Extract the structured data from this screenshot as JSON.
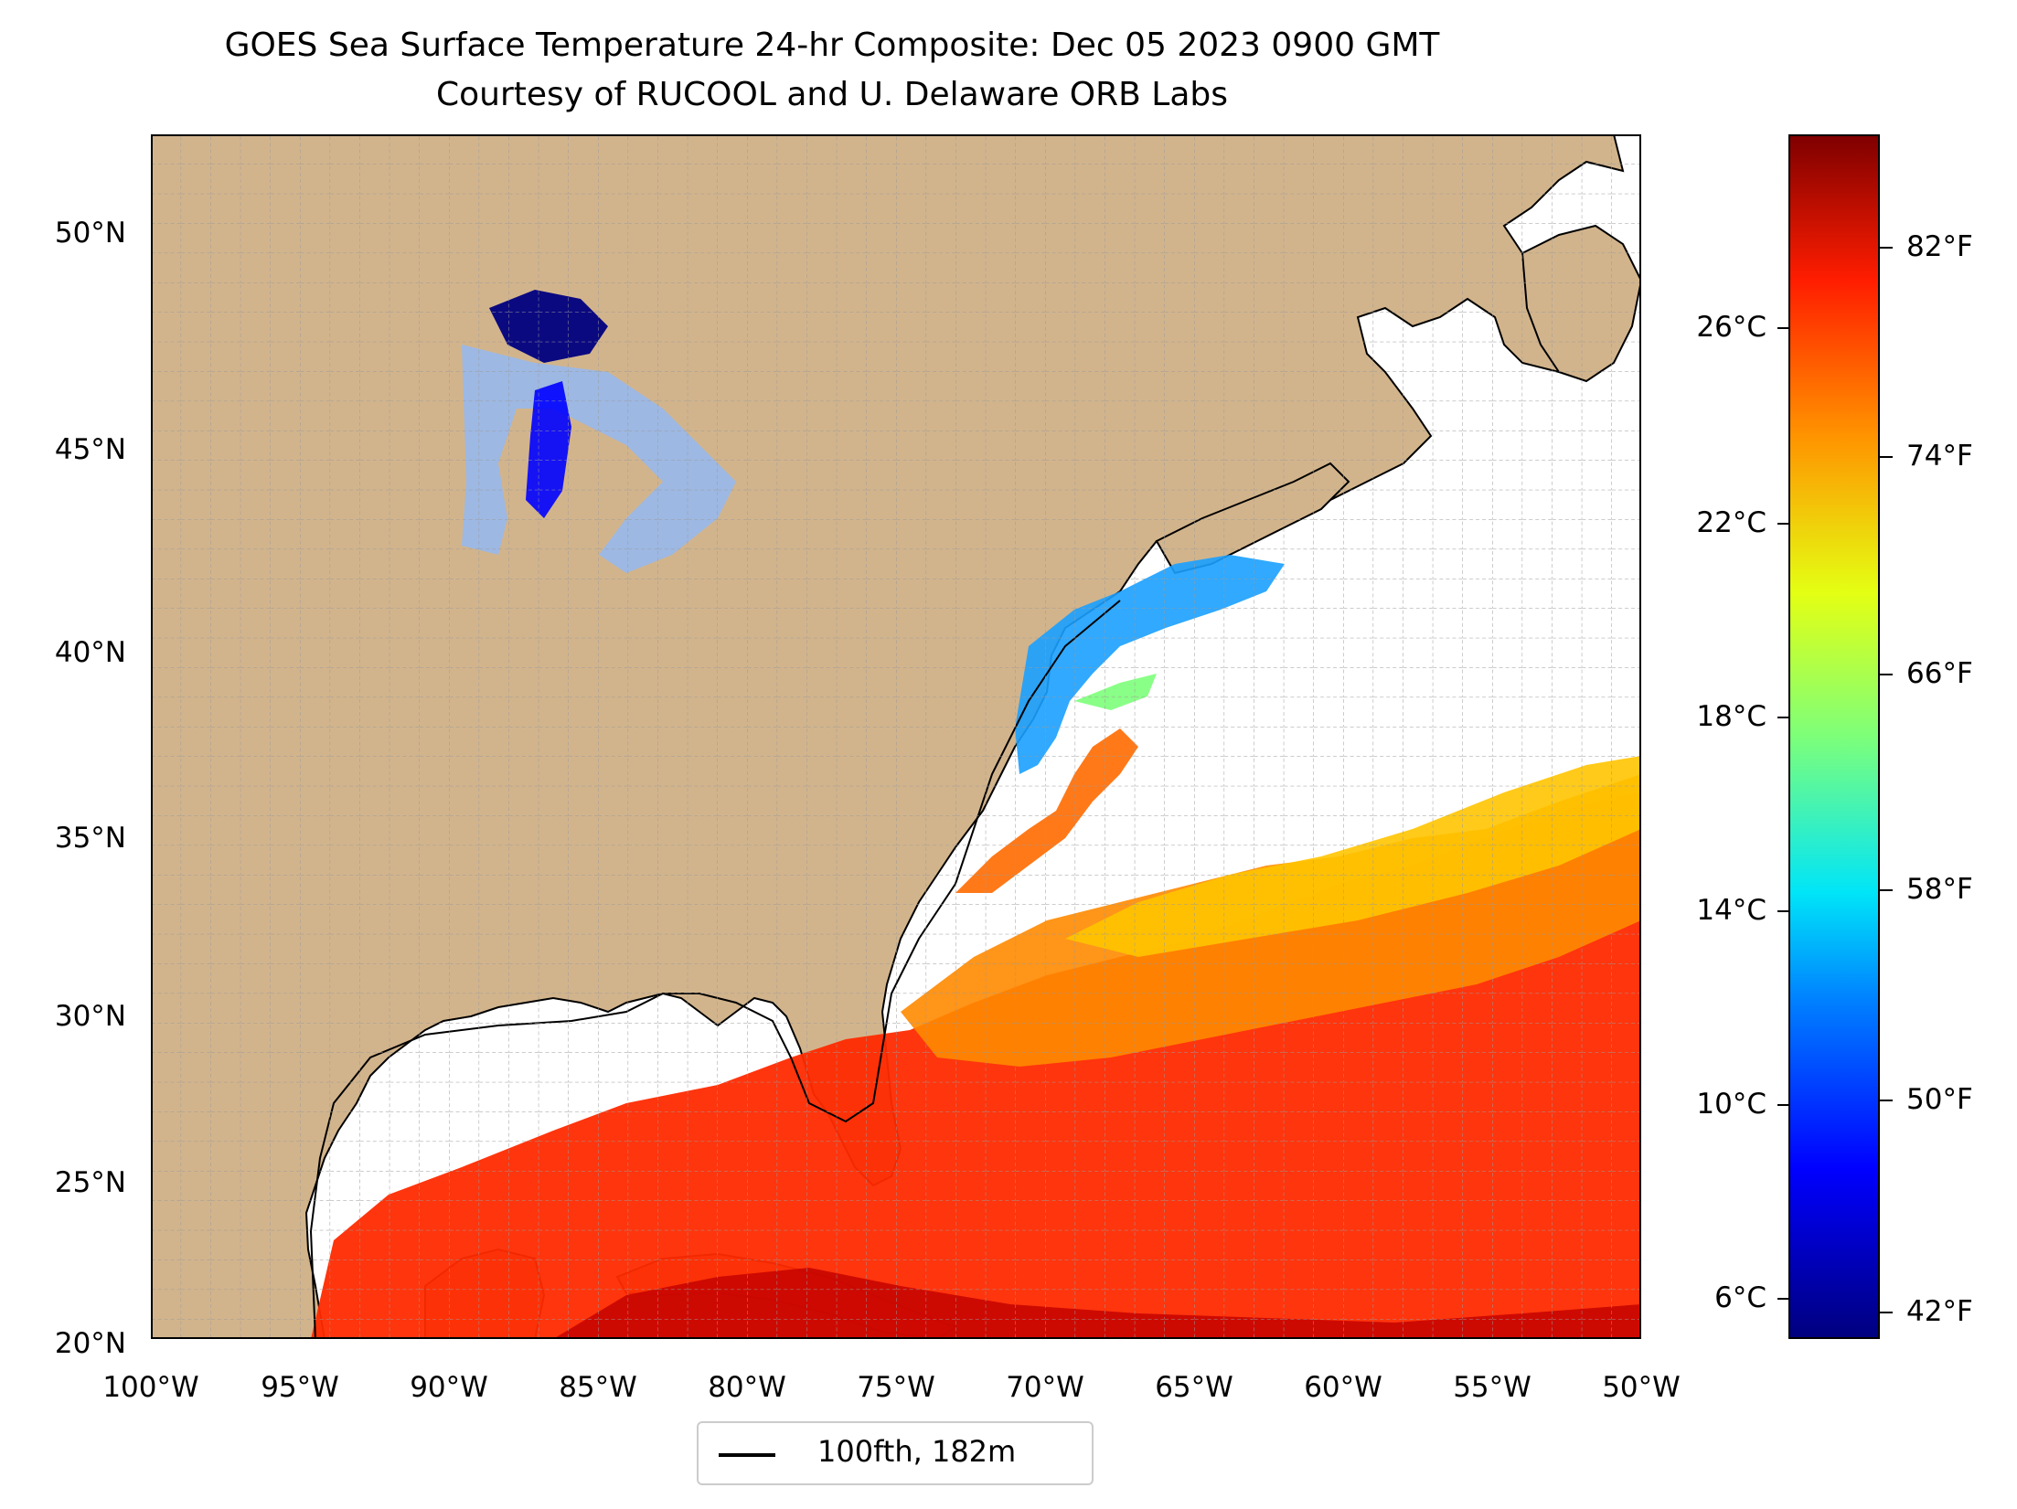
{
  "title": {
    "line1": "GOES Sea Surface Temperature 24-hr Composite: Dec 05 2023 0900 GMT",
    "line2": "Courtesy of RUCOOL and U. Delaware ORB Labs"
  },
  "map": {
    "lon_range": [
      -100,
      -50
    ],
    "lat_range": [
      20,
      52.5
    ],
    "lat_ticks": [
      "50°N",
      "45°N",
      "40°N",
      "35°N",
      "30°N",
      "25°N",
      "20°N"
    ],
    "lon_ticks": [
      "100°W",
      "95°W",
      "90°W",
      "85°W",
      "80°W",
      "75°W",
      "70°W",
      "65°W",
      "60°W",
      "55°W",
      "50°W"
    ],
    "land_color": "#d2b48c",
    "ocean_nodata_color": "#ffffff",
    "gridlines": true
  },
  "legend": {
    "label": "100fth, 182m",
    "line_color": "#000000",
    "placement": "below map"
  },
  "colorbar": {
    "celsius_ticks": [
      "26°C",
      "22°C",
      "18°C",
      "14°C",
      "10°C",
      "6°C"
    ],
    "fahrenheit_ticks": [
      "82°F",
      "74°F",
      "66°F",
      "58°F",
      "50°F",
      "42°F"
    ],
    "celsius_values": [
      26,
      22,
      18,
      14,
      10,
      6
    ],
    "fahrenheit_values": [
      82,
      74,
      66,
      58,
      50,
      42
    ],
    "range_f": [
      40.4,
      88.1
    ],
    "colormap": "jet"
  }
}
